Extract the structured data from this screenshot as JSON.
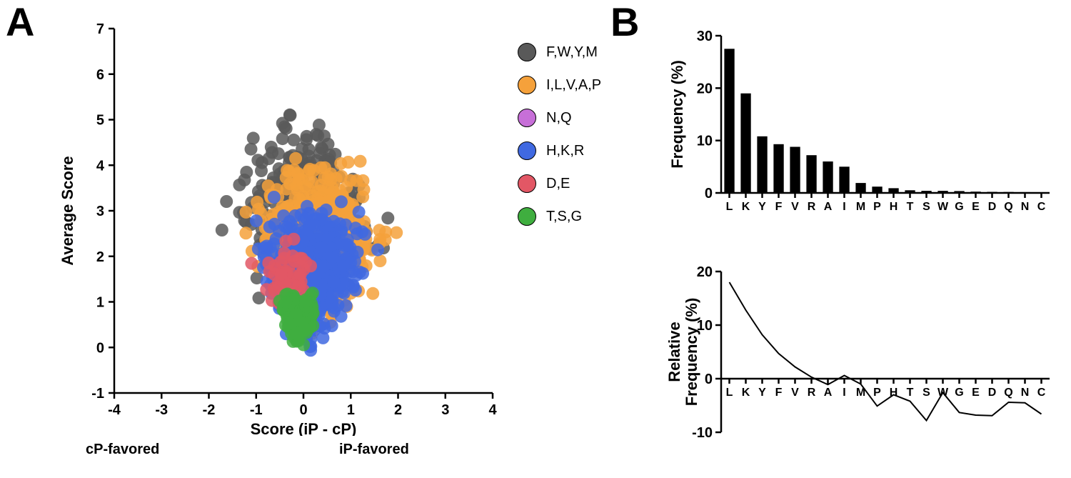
{
  "panelA": {
    "label": "A",
    "type": "scatter",
    "title": "",
    "xlabel": "Score (iP - cP)",
    "ylabel": "Average Score",
    "xlim": [
      -4,
      4
    ],
    "ylim": [
      -1,
      7
    ],
    "xtick_step": 1,
    "ytick_step": 1,
    "background_color": "#ffffff",
    "axis_color": "#000000",
    "axis_width": 2.5,
    "marker_size": 9,
    "marker_opacity": 0.85,
    "annotations": {
      "left": "cP-favored",
      "right": "iP-favored"
    },
    "legend": [
      {
        "label": "F,W,Y,M",
        "color": "#595959"
      },
      {
        "label": "I,L,V,A,P",
        "color": "#f5a13b"
      },
      {
        "label": "N,Q",
        "color": "#c76fd8"
      },
      {
        "label": "H,K,R",
        "color": "#4069e1"
      },
      {
        "label": "D,E",
        "color": "#e25765"
      },
      {
        "label": "T,S,G",
        "color": "#3fae3f"
      }
    ],
    "series": [
      {
        "color": "#595959",
        "seeds": [
          3,
          17,
          41
        ],
        "n": 320,
        "xspread": 2.3,
        "yspread": 3.1,
        "ycenter": 3.0,
        "xcenter": 0.0
      },
      {
        "color": "#f5a13b",
        "seeds": [
          5,
          29,
          53
        ],
        "n": 520,
        "xspread": 2.0,
        "yspread": 2.8,
        "ycenter": 2.3,
        "xcenter": 0.2
      },
      {
        "color": "#4069e1",
        "seeds": [
          7,
          31,
          59
        ],
        "n": 620,
        "xspread": 1.6,
        "yspread": 2.3,
        "ycenter": 1.6,
        "xcenter": 0.15
      },
      {
        "color": "#e25765",
        "seeds": [
          11,
          37,
          61
        ],
        "n": 70,
        "xspread": 0.9,
        "yspread": 1.4,
        "ycenter": 1.4,
        "xcenter": -0.25
      },
      {
        "color": "#3fae3f",
        "seeds": [
          13,
          43,
          67
        ],
        "n": 170,
        "xspread": 0.7,
        "yspread": 0.9,
        "ycenter": 0.55,
        "xcenter": -0.1
      }
    ]
  },
  "panelB": {
    "label": "B",
    "bar": {
      "type": "bar",
      "ylabel": "Frequency (%)",
      "ylim": [
        0,
        30
      ],
      "ytick_step": 10,
      "categories": [
        "L",
        "K",
        "Y",
        "F",
        "V",
        "R",
        "A",
        "I",
        "M",
        "P",
        "H",
        "T",
        "S",
        "W",
        "G",
        "E",
        "D",
        "Q",
        "N",
        "C"
      ],
      "values": [
        27.5,
        19.0,
        10.8,
        9.3,
        8.8,
        7.2,
        6.0,
        5.0,
        1.9,
        1.2,
        0.9,
        0.5,
        0.4,
        0.4,
        0.35,
        0.25,
        0.2,
        0.18,
        0.15,
        0.1
      ],
      "bar_color": "#000000",
      "bar_width": 0.62,
      "background_color": "#ffffff",
      "axis_color": "#000000",
      "axis_width": 2.5,
      "label_fontsize": 20
    },
    "line": {
      "type": "line",
      "ylabel_top": "Relative",
      "ylabel_bottom": "Frequency (%)",
      "ylim": [
        -10,
        20
      ],
      "ytick_step": 10,
      "categories": [
        "L",
        "K",
        "Y",
        "F",
        "V",
        "R",
        "A",
        "I",
        "M",
        "P",
        "H",
        "T",
        "S",
        "W",
        "G",
        "E",
        "D",
        "Q",
        "N",
        "C"
      ],
      "values": [
        18.0,
        12.8,
        8.2,
        4.7,
        2.2,
        0.3,
        -1.1,
        0.6,
        -1.0,
        -5.1,
        -3.0,
        -4.2,
        -7.8,
        -2.6,
        -6.3,
        -6.8,
        -6.9,
        -4.4,
        -4.5,
        -6.6
      ],
      "line_color": "#000000",
      "line_width": 2,
      "background_color": "#ffffff",
      "axis_color": "#000000",
      "axis_width": 2.5,
      "label_fontsize": 20
    }
  }
}
